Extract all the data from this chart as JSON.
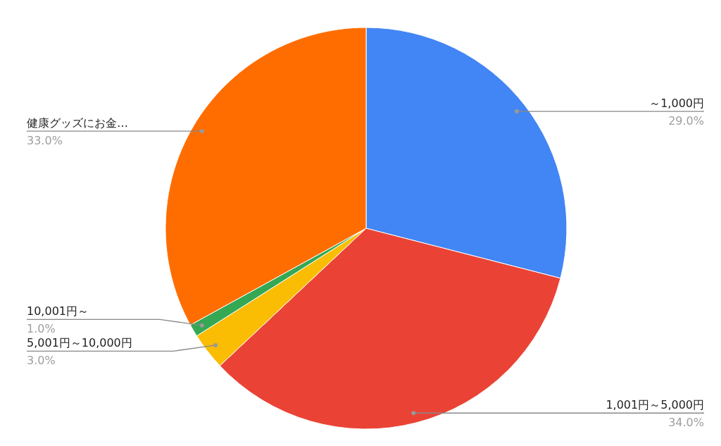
{
  "chart_data": {
    "type": "pie",
    "categories": [
      "～1,000円",
      "1,001円～5,000円",
      "5,001円～10,000円",
      "10,001円～",
      "健康グッズにお金…"
    ],
    "values": [
      29,
      34,
      3,
      1,
      33
    ],
    "value_labels": [
      "29.0%",
      "34.0%",
      "3.0%",
      "1.0%",
      "33.0%"
    ],
    "colors": [
      "#4285f4",
      "#ea4335",
      "#fbbc04",
      "#34a853",
      "#ff6d01"
    ]
  }
}
